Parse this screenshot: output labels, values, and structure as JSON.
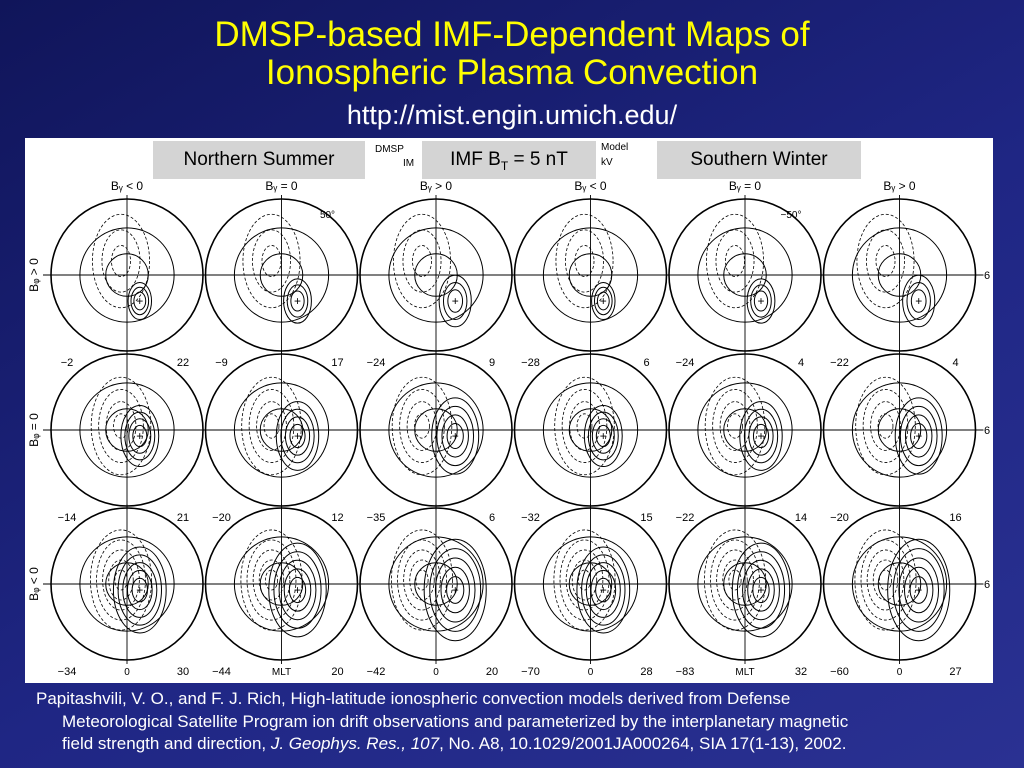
{
  "slide": {
    "title_line1": "DMSP-based IMF-Dependent Maps of",
    "title_line2": "Ionospheric Plasma Convection",
    "url": "http://mist.engin.umich.edu/"
  },
  "labels": {
    "left": "Northern Summer",
    "center_prefix": "IMF B",
    "center_sub": "T",
    "center_suffix": " = 5 nT",
    "right": "Southern Winter"
  },
  "figure": {
    "partial_header_left": "DMSP",
    "partial_header_left2": "IM",
    "partial_header_right": "Model",
    "partial_header_right2": "kV",
    "column_headers": [
      "Bᵧ < 0",
      "Bᵧ = 0",
      "Bᵧ > 0",
      "Bᵧ < 0",
      "Bᵧ = 0",
      "Bᵧ > 0"
    ],
    "row_labels": [
      "Bᵩ > 0",
      "Bᵩ = 0",
      "Bᵩ < 0"
    ],
    "lat_labels": [
      "50°",
      "−50°"
    ],
    "mlt_label": "MLT",
    "side_marks": [
      "6",
      "6",
      "6"
    ],
    "bottom_values": [
      [
        [
          "−2",
          "22"
        ],
        [
          "−9",
          "17"
        ],
        [
          "−24",
          "9"
        ],
        [
          "−28",
          "6"
        ],
        [
          "−24",
          "4"
        ],
        [
          "−22",
          "4"
        ]
      ],
      [
        [
          "−14",
          "21"
        ],
        [
          "−20",
          "12"
        ],
        [
          "−35",
          "6"
        ],
        [
          "−32",
          "15"
        ],
        [
          "−22",
          "14"
        ],
        [
          "−20",
          "16"
        ]
      ],
      [
        [
          "−34",
          "30"
        ],
        [
          "−44",
          "20"
        ],
        [
          "−42",
          "20"
        ],
        [
          "−70",
          "28"
        ],
        [
          "−83",
          "32"
        ],
        [
          "−60",
          "27"
        ]
      ]
    ],
    "bottom_centers": [
      "0",
      "MLT",
      "0",
      "0",
      "MLT",
      "0"
    ]
  },
  "citation": {
    "line1": "Papitashvili, V. O., and F. J. Rich, High-latitude ionospheric convection models derived from Defense",
    "line2": "Meteorological Satellite Program ion drift observations and parameterized by the interplanetary magnetic",
    "line3_start": "field strength and direction, ",
    "journal": "J. Geophys. Res., 107",
    "line3_end": ", No. A8, 10.1029/2001JA000264, SIA 17(1-13), 2002."
  }
}
